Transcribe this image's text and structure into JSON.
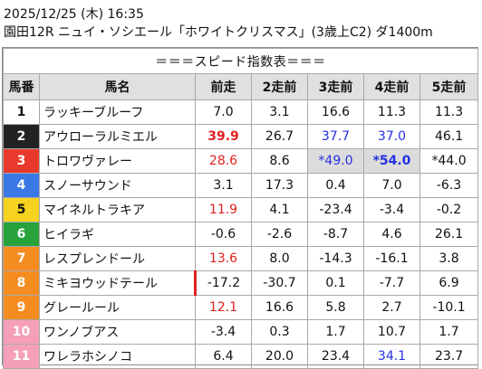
{
  "header": {
    "line1": "2025/12/25 (木) 16:35",
    "line2": "園田12R ニュイ・ソシエール「ホワイトクリスマス」(3歳上C2) ダ1400m"
  },
  "table": {
    "title": "＝＝＝スピード指数表＝＝＝",
    "columns": [
      "馬番",
      "馬名",
      "前走",
      "2走前",
      "3走前",
      "4走前",
      "5走前"
    ],
    "rows": [
      {
        "num": "1",
        "name": "ラッキーブルーフ",
        "v": [
          "7.0",
          "3.1",
          "16.6",
          "11.3",
          "11.3"
        ]
      },
      {
        "num": "2",
        "name": "アウローラルミエル",
        "v": [
          "39.9",
          "26.7",
          "37.7",
          "37.0",
          "46.1"
        ]
      },
      {
        "num": "3",
        "name": "トロワヴァレー",
        "v": [
          "28.6",
          "8.6",
          "*49.0",
          "*54.0",
          "*44.0"
        ]
      },
      {
        "num": "4",
        "name": "スノーサウンド",
        "v": [
          "3.1",
          "17.3",
          "0.4",
          "7.0",
          "-6.3"
        ]
      },
      {
        "num": "5",
        "name": "マイネルトラキア",
        "v": [
          "11.9",
          "4.1",
          "-23.4",
          "-3.4",
          "-0.2"
        ]
      },
      {
        "num": "6",
        "name": "ヒイラギ",
        "v": [
          "-0.6",
          "-2.6",
          "-8.7",
          "4.6",
          "26.1"
        ]
      },
      {
        "num": "7",
        "name": "レスプレンドール",
        "v": [
          "13.6",
          "8.0",
          "-14.3",
          "-16.1",
          "3.8"
        ]
      },
      {
        "num": "8",
        "name": "ミキヨウッドテール",
        "v": [
          "-17.2",
          "-30.7",
          "0.1",
          "-7.7",
          "6.9"
        ]
      },
      {
        "num": "9",
        "name": "グレールール",
        "v": [
          "12.1",
          "16.6",
          "5.8",
          "2.7",
          "-10.1"
        ]
      },
      {
        "num": "10",
        "name": "ワンノブアス",
        "v": [
          "-3.4",
          "0.3",
          "1.7",
          "10.7",
          "1.7"
        ]
      },
      {
        "num": "11",
        "name": "ワレラホシノコ",
        "v": [
          "6.4",
          "20.0",
          "23.4",
          "34.1",
          "23.7"
        ]
      }
    ]
  },
  "colors": {
    "frame_1": "#ffffff",
    "frame_2": "#222222",
    "frame_3": "#e8392c",
    "frame_4": "#3a78e6",
    "frame_5": "#f5d31f",
    "frame_6": "#28a33c",
    "frame_7": "#f58c1f",
    "frame_8": "#f5a0b8",
    "highlight_red": "#e02020",
    "highlight_blue": "#2530e0",
    "header_bg": "#e0e0e0"
  }
}
